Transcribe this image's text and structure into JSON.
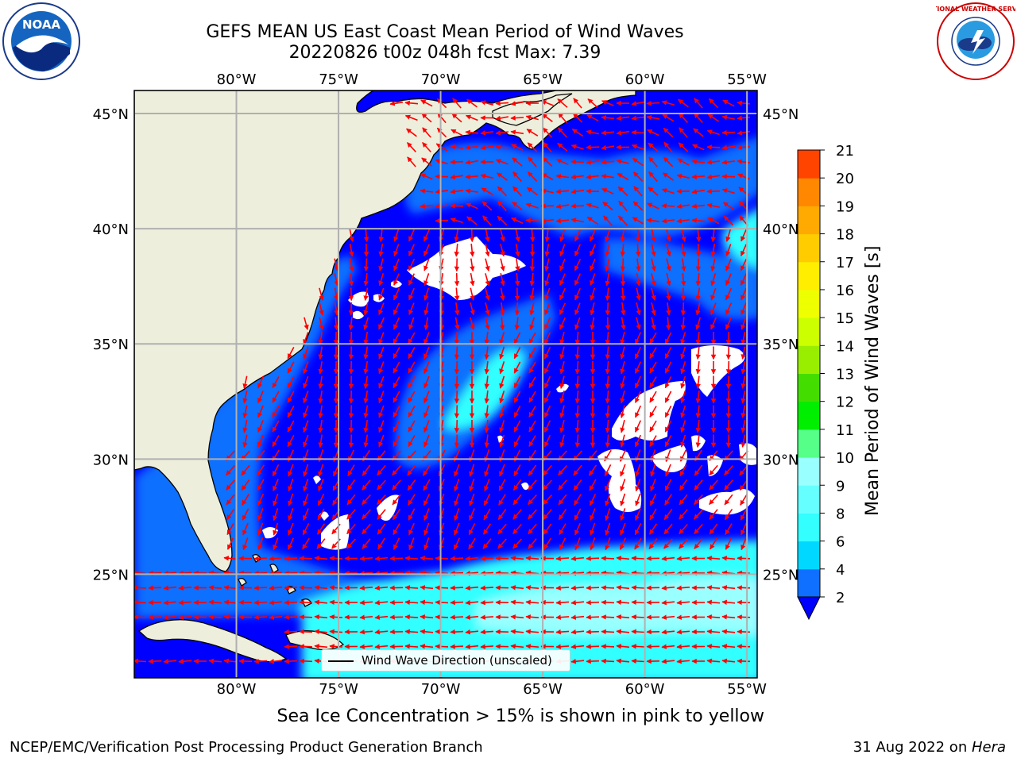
{
  "title": {
    "line1": "GEFS MEAN US East Coast Mean Period of Wind Waves",
    "line2": "20220826 t00z 048h fcst   Max: 7.39"
  },
  "logos": {
    "noaa": "NOAA",
    "nws": "NATIONAL WEATHER SERVICE"
  },
  "map": {
    "lon_labels": [
      "80°W",
      "75°W",
      "70°W",
      "65°W",
      "60°W",
      "55°W"
    ],
    "lat_labels": [
      "45°N",
      "40°N",
      "35°N",
      "30°N",
      "25°N"
    ],
    "lon_range": [
      -85,
      -54.5
    ],
    "lat_range": [
      20.5,
      46
    ]
  },
  "colorbar": {
    "label": "Mean Period of Wind Waves [s]",
    "ticks": [
      "2",
      "4",
      "6",
      "8",
      "9",
      "10",
      "11",
      "12",
      "13",
      "14",
      "15",
      "16",
      "17",
      "18",
      "19",
      "20",
      "21"
    ],
    "colors": [
      "#0f6fff",
      "#00d8ff",
      "#33ffff",
      "#66ffff",
      "#99ffff",
      "#55ff88",
      "#00ee00",
      "#44dd00",
      "#99ee00",
      "#ccff00",
      "#eeff00",
      "#ffee00",
      "#ffcc00",
      "#ffaa00",
      "#ff8800",
      "#ff4400",
      "#ff0000"
    ],
    "under_color": "#0000ff"
  },
  "colors": {
    "ocean_deep": "#0000ff",
    "ocean_mid": "#0f6fff",
    "ocean_cyan": "#33ffff",
    "ocean_pale": "#99ffff",
    "land": "#eeeedc",
    "arrow": "#ff0000",
    "grid": "#b0b0b0"
  },
  "legend": {
    "label": "Wind Wave Direction (unscaled)"
  },
  "notes": {
    "sea_ice": "Sea Ice Concentration > 15% is shown in pink to yellow",
    "footer_left": "NCEP/EMC/Verification Post Processing Product Generation Branch",
    "footer_date": "31 Aug 2022 on ",
    "footer_machine": "Hera"
  }
}
